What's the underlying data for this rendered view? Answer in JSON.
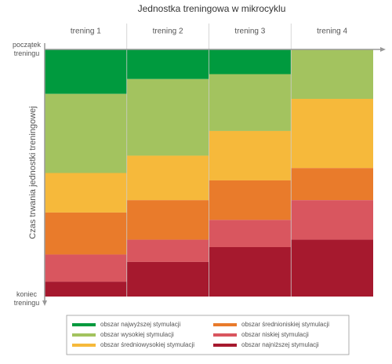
{
  "chart_data": {
    "type": "stacked_bar",
    "title": "Jednostka treningowa w mikrocyklu",
    "y_label": "Czas trwania jednostki treningowej",
    "y_start_label": "początek treningu",
    "y_end_label": "koniec treningu",
    "categories": [
      "trening 1",
      "trening 2",
      "trening 3",
      "trening 4"
    ],
    "ylim": [
      0,
      100
    ],
    "series": [
      {
        "name": "obszar najwyższej stymulacji",
        "color": "#009a3e",
        "values": [
          18,
          12,
          10,
          0
        ]
      },
      {
        "name": "obszar wysokiej stymulacji",
        "color": "#a3c35f",
        "values": [
          32,
          31,
          23,
          20
        ]
      },
      {
        "name": "obszar średniowysokiej stymulacji",
        "color": "#f6b93b",
        "values": [
          16,
          18,
          20,
          28
        ]
      },
      {
        "name": "obszar średnioniskiej stymulacji",
        "color": "#e97b2b",
        "values": [
          17,
          16,
          16,
          13
        ]
      },
      {
        "name": "obszar niskiej stymulacji",
        "color": "#d9565f",
        "values": [
          11,
          9,
          11,
          16
        ]
      },
      {
        "name": "obszar najniższej stymulacji",
        "color": "#a6192e",
        "values": [
          6,
          14,
          20,
          23
        ]
      }
    ]
  }
}
